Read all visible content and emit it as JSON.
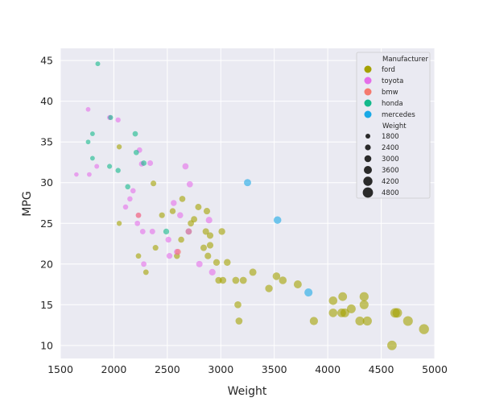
{
  "chart_data": {
    "type": "scatter",
    "title": "",
    "xlabel": "Weight",
    "ylabel": "MPG",
    "xlim": [
      1500,
      5000
    ],
    "ylim": [
      8.4,
      46.5
    ],
    "xticks": [
      1500,
      2000,
      2500,
      3000,
      3500,
      4000,
      4500,
      5000
    ],
    "yticks": [
      10,
      15,
      20,
      25,
      30,
      35,
      40,
      45
    ],
    "grid": true,
    "legend": {
      "position": "top-right",
      "hue_title": "Manufacturer",
      "size_title": "Weight",
      "hue_entries": [
        {
          "label": "ford",
          "color": "#a4a100"
        },
        {
          "label": "toyota",
          "color": "#e46ee9"
        },
        {
          "label": "bmw",
          "color": "#f57a6e"
        },
        {
          "label": "honda",
          "color": "#14b98b"
        },
        {
          "label": "mercedes",
          "color": "#1aa9e6"
        }
      ],
      "size_entries": [
        "1800",
        "2400",
        "3000",
        "3600",
        "4200",
        "4800"
      ]
    },
    "series": [
      {
        "name": "ford",
        "color": "#a4a100",
        "points": [
          [
            2050,
            34.4
          ],
          [
            2050,
            25
          ],
          [
            2230,
            21
          ],
          [
            2300,
            19
          ],
          [
            2370,
            29.9
          ],
          [
            2390,
            22
          ],
          [
            2450,
            26
          ],
          [
            2550,
            26.5
          ],
          [
            2590,
            21
          ],
          [
            2630,
            23
          ],
          [
            2640,
            28
          ],
          [
            2700,
            24
          ],
          [
            2720,
            25
          ],
          [
            2750,
            25.5
          ],
          [
            2790,
            27
          ],
          [
            2840,
            22
          ],
          [
            2860,
            24
          ],
          [
            2870,
            26.5
          ],
          [
            2880,
            21
          ],
          [
            2900,
            22.3
          ],
          [
            2900,
            23.5
          ],
          [
            2960,
            20.2
          ],
          [
            2980,
            18
          ],
          [
            3010,
            24
          ],
          [
            3020,
            18
          ],
          [
            3060,
            20.2
          ],
          [
            3140,
            18
          ],
          [
            3160,
            15
          ],
          [
            3170,
            13
          ],
          [
            3210,
            18
          ],
          [
            3300,
            19
          ],
          [
            3450,
            17
          ],
          [
            3520,
            18.5
          ],
          [
            3580,
            18
          ],
          [
            3720,
            17.5
          ],
          [
            3870,
            13
          ],
          [
            4050,
            15.5
          ],
          [
            4050,
            14
          ],
          [
            4130,
            14
          ],
          [
            4140,
            16
          ],
          [
            4160,
            14
          ],
          [
            4220,
            14.5
          ],
          [
            4300,
            13
          ],
          [
            4340,
            16
          ],
          [
            4340,
            15
          ],
          [
            4370,
            13
          ],
          [
            4600,
            10
          ],
          [
            4630,
            14
          ],
          [
            4650,
            14
          ],
          [
            4750,
            13
          ],
          [
            4900,
            12
          ]
        ]
      },
      {
        "name": "toyota",
        "color": "#e46ee9",
        "points": [
          [
            1650,
            31
          ],
          [
            1760,
            39
          ],
          [
            1770,
            31
          ],
          [
            1840,
            32
          ],
          [
            1960,
            38
          ],
          [
            2040,
            37.7
          ],
          [
            2110,
            27
          ],
          [
            2150,
            28
          ],
          [
            2180,
            29
          ],
          [
            2220,
            25
          ],
          [
            2230,
            26
          ],
          [
            2240,
            34
          ],
          [
            2260,
            32.3
          ],
          [
            2270,
            24
          ],
          [
            2280,
            20
          ],
          [
            2340,
            32.4
          ],
          [
            2360,
            24
          ],
          [
            2510,
            23
          ],
          [
            2520,
            21
          ],
          [
            2560,
            27.5
          ],
          [
            2590,
            21.5
          ],
          [
            2620,
            26
          ],
          [
            2670,
            32
          ],
          [
            2700,
            24
          ],
          [
            2710,
            29.8
          ],
          [
            2800,
            20
          ],
          [
            2890,
            25.4
          ],
          [
            2920,
            19
          ]
        ]
      },
      {
        "name": "bmw",
        "color": "#f57a6e",
        "points": [
          [
            2230,
            26
          ],
          [
            2600,
            21.5
          ]
        ]
      },
      {
        "name": "honda",
        "color": "#14b98b",
        "points": [
          [
            1760,
            35
          ],
          [
            1800,
            36
          ],
          [
            1800,
            33
          ],
          [
            1850,
            44.6
          ],
          [
            1960,
            32
          ],
          [
            1970,
            38
          ],
          [
            2040,
            31.5
          ],
          [
            2130,
            29.5
          ],
          [
            2200,
            36
          ],
          [
            2210,
            33.7
          ],
          [
            2280,
            32.4
          ],
          [
            2490,
            24
          ]
        ]
      },
      {
        "name": "mercedes",
        "color": "#1aa9e6",
        "points": [
          [
            3250,
            30
          ],
          [
            3530,
            25.4
          ],
          [
            3820,
            16.5
          ]
        ]
      }
    ]
  }
}
